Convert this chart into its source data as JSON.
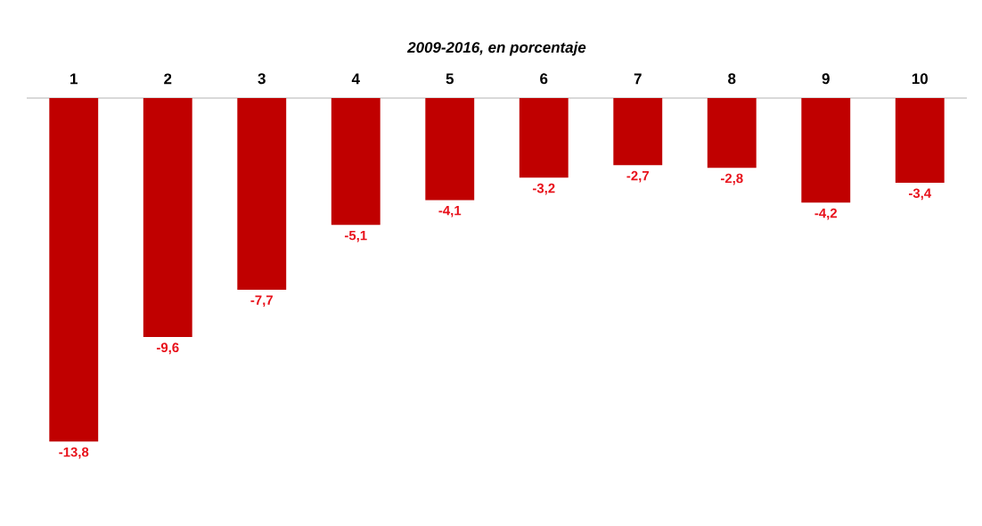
{
  "chart_data": {
    "type": "bar",
    "title": "2009-2016, en porcentaje",
    "categories": [
      "1",
      "2",
      "3",
      "4",
      "5",
      "6",
      "7",
      "8",
      "9",
      "10"
    ],
    "values": [
      -13.8,
      -9.6,
      -7.7,
      -5.1,
      -4.1,
      -3.2,
      -2.7,
      -2.8,
      -4.2,
      -3.4
    ],
    "value_labels": [
      "-13,8",
      "-9,6",
      "-7,7",
      "-5,1",
      "-4,1",
      "-3,2",
      "-2,7",
      "-2,8",
      "-4,2",
      "-3,4"
    ],
    "color": "#c00000"
  }
}
